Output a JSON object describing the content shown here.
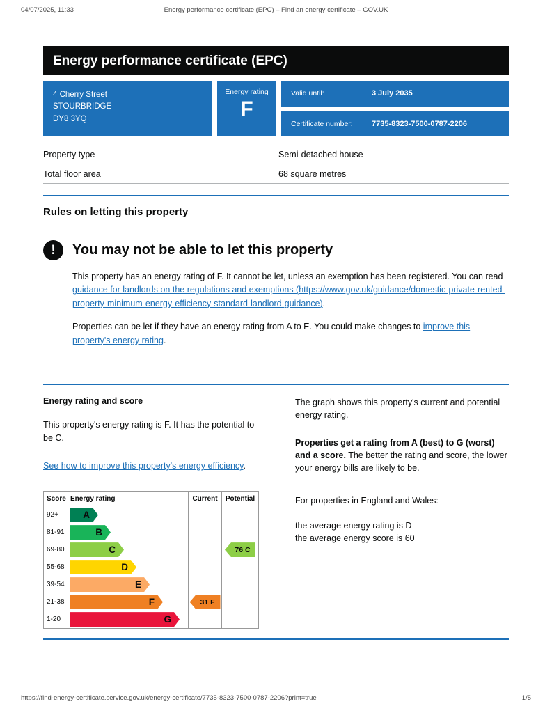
{
  "print_header": {
    "datetime": "04/07/2025, 11:33",
    "doc_title": "Energy performance certificate (EPC) – Find an energy certificate – GOV.UK"
  },
  "banner": {
    "title": "Energy performance certificate (EPC)"
  },
  "summary": {
    "address_lines": [
      "4 Cherry Street",
      "STOURBRIDGE",
      "DY8 3YQ"
    ],
    "energy_rating_label": "Energy rating",
    "energy_rating": "F",
    "valid_until_label": "Valid until:",
    "valid_until": "3 July 2035",
    "certificate_number_label": "Certificate number:",
    "certificate_number": "7735-8323-7500-0787-2206"
  },
  "property_rows": [
    {
      "label": "Property type",
      "value": "Semi-detached house"
    },
    {
      "label": "Total floor area",
      "value": "68 square metres"
    }
  ],
  "rules": {
    "heading": "Rules on letting this property",
    "warning_icon_glyph": "!",
    "warning_heading": "You may not be able to let this property",
    "para1_before": "This property has an energy rating of F. It cannot be let, unless an exemption has been registered. You can read ",
    "para1_link": "guidance for landlords on the regulations and exemptions (https://www.gov.uk/guidance/domestic-private-rented-property-minimum-energy-efficiency-standard-landlord-guidance)",
    "para1_after": ".",
    "para2_before": "Properties can be let if they have an energy rating from A to E. You could make changes to ",
    "para2_link": "improve this property's energy rating",
    "para2_after": "."
  },
  "rating_section": {
    "heading": "Energy rating and score",
    "intro": "This property's energy rating is F. It has the potential to be C.",
    "link": "See how to improve this property's energy efficiency",
    "link_suffix": ".",
    "graph_intro": "The graph shows this property's current and potential energy rating.",
    "ratings_bold": "Properties get a rating from A (best) to G (worst) and a score.",
    "ratings_rest": " The better the rating and score, the lower your energy bills are likely to be.",
    "england_wales": "For properties in England and Wales:",
    "avg_rating": "the average energy rating is D",
    "avg_score": "the average energy score is 60"
  },
  "chart_data": {
    "type": "bar",
    "subtype": "epc-energy-rating-bands",
    "columns": [
      "Score",
      "Energy rating",
      "Current",
      "Potential"
    ],
    "bands": [
      {
        "score": "92+",
        "letter": "A",
        "color": "#008054"
      },
      {
        "score": "81-91",
        "letter": "B",
        "color": "#19b459"
      },
      {
        "score": "69-80",
        "letter": "C",
        "color": "#8dce46"
      },
      {
        "score": "55-68",
        "letter": "D",
        "color": "#ffd500"
      },
      {
        "score": "39-54",
        "letter": "E",
        "color": "#fcaa65"
      },
      {
        "score": "21-38",
        "letter": "F",
        "color": "#ef8023"
      },
      {
        "score": "1-20",
        "letter": "G",
        "color": "#e9153b"
      }
    ],
    "current": {
      "score": 31,
      "letter": "F",
      "label": "31 F",
      "band_index": 5,
      "color": "#ef8023"
    },
    "potential": {
      "score": 76,
      "letter": "C",
      "label": "76 C",
      "band_index": 2,
      "color": "#8dce46"
    }
  },
  "colors": {
    "govuk_blue": "#1d70b8",
    "ink": "#0b0c0c",
    "border_grey": "#b1b4b6"
  },
  "footer": {
    "url": "https://find-energy-certificate.service.gov.uk/energy-certificate/7735-8323-7500-0787-2206?print=true",
    "page": "1/5"
  }
}
